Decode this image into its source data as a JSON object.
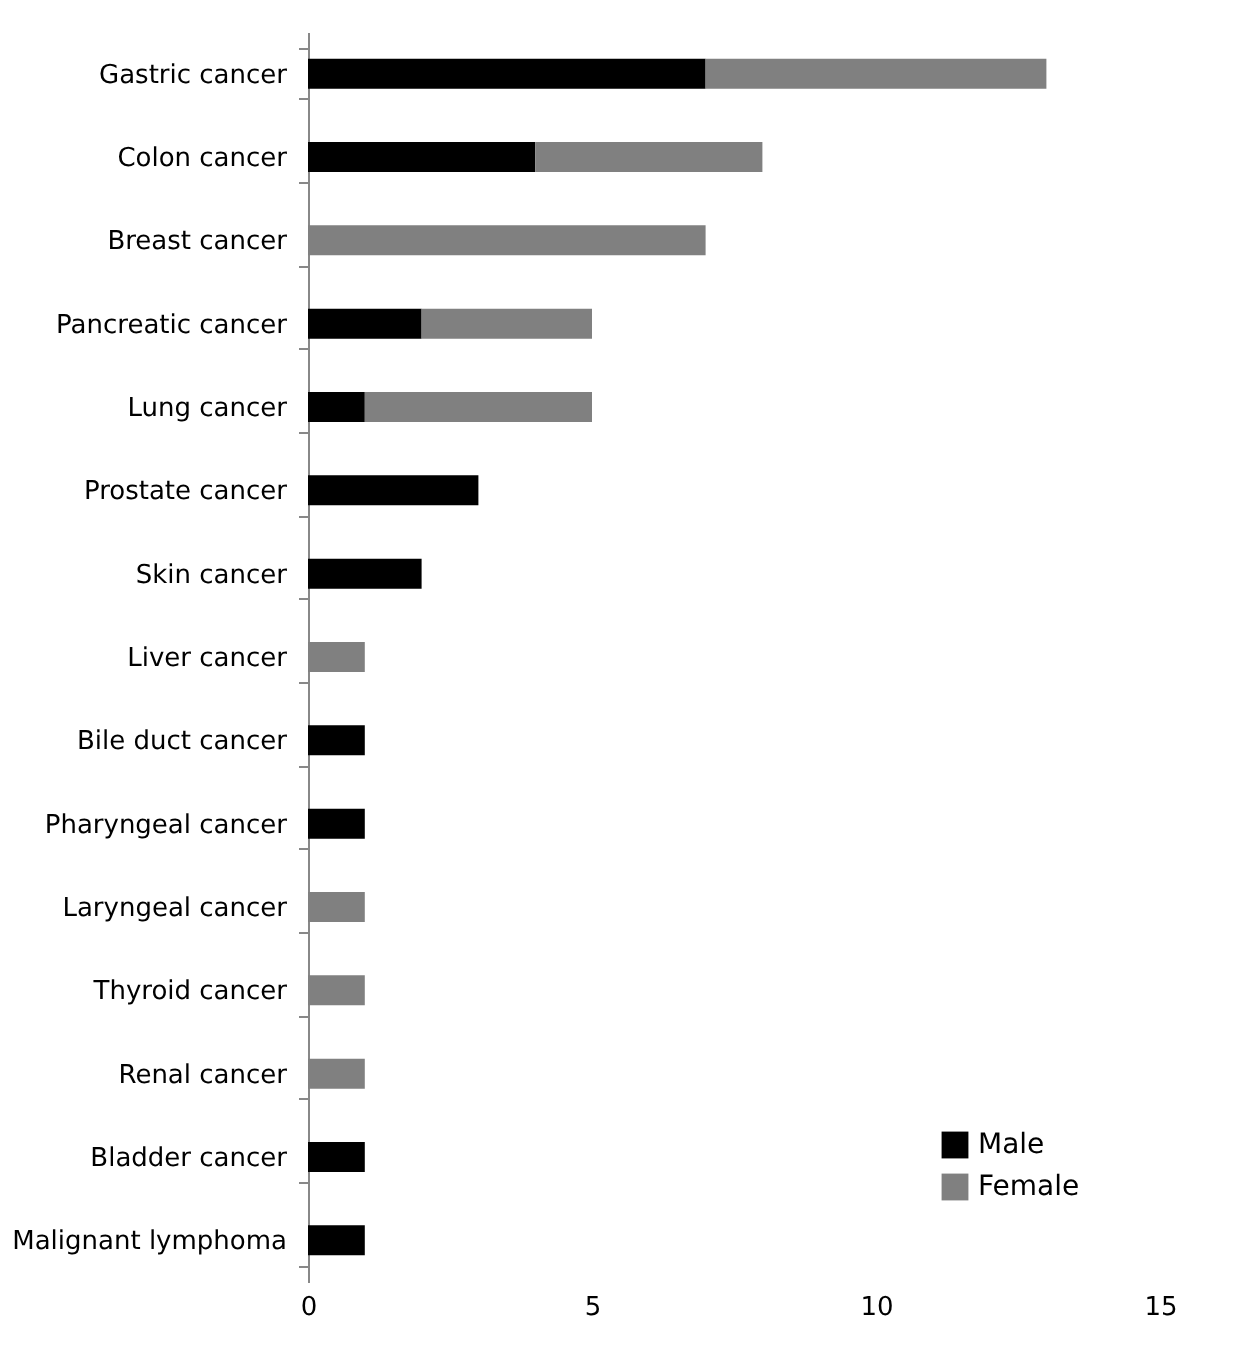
{
  "chart_data": {
    "type": "bar",
    "orientation": "horizontal",
    "stacked": true,
    "categories": [
      "Gastric cancer",
      "Colon cancer",
      "Breast cancer",
      "Pancreatic cancer",
      "Lung cancer",
      "Prostate cancer",
      "Skin cancer",
      "Liver cancer",
      "Bile duct cancer",
      "Pharyngeal cancer",
      "Laryngeal cancer",
      "Thyroid cancer",
      "Renal cancer",
      "Bladder cancer",
      "Malignant lymphoma"
    ],
    "series": [
      {
        "name": "Male",
        "color": "#000000",
        "values": [
          7,
          4,
          0,
          2,
          1,
          3,
          2,
          0,
          1,
          1,
          0,
          0,
          0,
          1,
          1
        ]
      },
      {
        "name": "Female",
        "color": "#808080",
        "values": [
          6,
          4,
          7,
          3,
          4,
          0,
          0,
          1,
          0,
          0,
          1,
          1,
          1,
          0,
          0
        ]
      }
    ],
    "xlim": [
      0,
      15
    ],
    "xticks": [
      0,
      5,
      10,
      15
    ],
    "grid": false,
    "legend": "bottom right"
  }
}
